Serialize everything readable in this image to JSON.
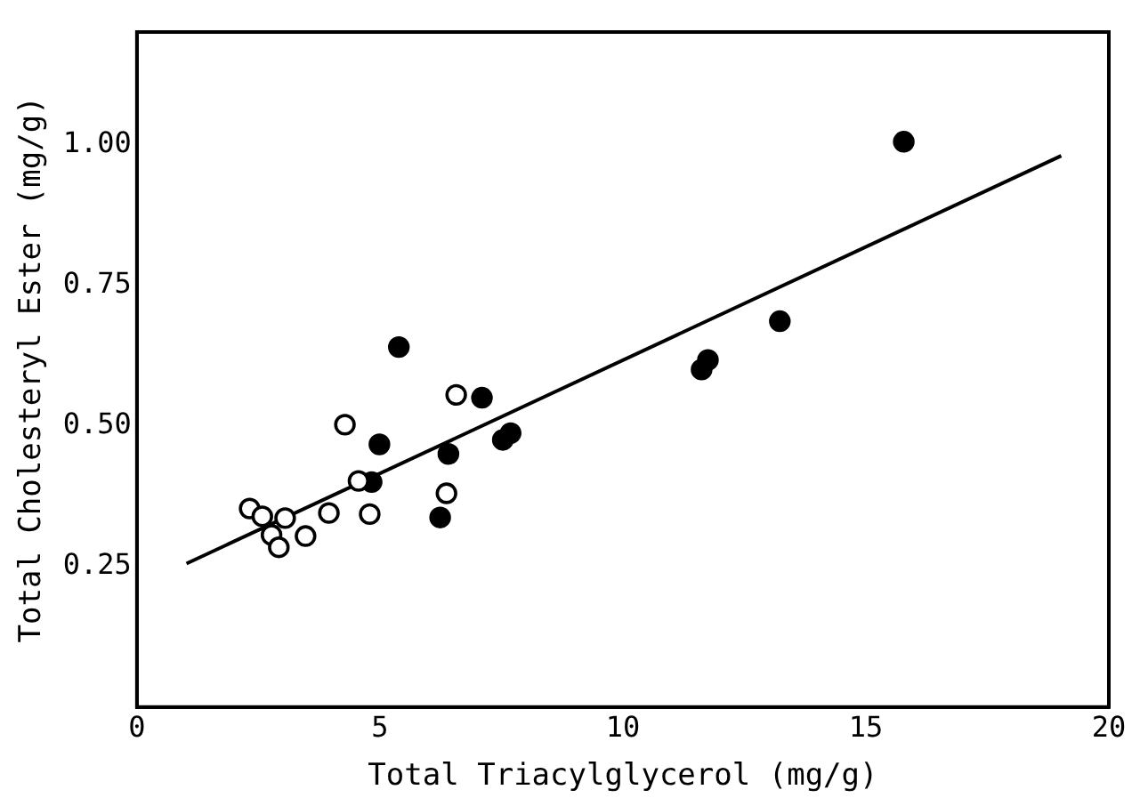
{
  "chart_data": {
    "type": "scatter",
    "xlabel": "Total Triacylglycerol (mg/g)",
    "ylabel": "Total Cholesteryl Ester (mg/g)",
    "xlim": [
      0,
      20
    ],
    "ylim": [
      0,
      1.2
    ],
    "xticks": [
      0,
      5,
      10,
      15,
      20
    ],
    "yticks": [
      {
        "value": 0.25,
        "label": "0.25"
      },
      {
        "value": 0.5,
        "label": "0.50"
      },
      {
        "value": 0.75,
        "label": "0.75"
      },
      {
        "value": 1,
        "label": "1.00"
      }
    ],
    "grid": false,
    "legend": false,
    "marker": "circle",
    "series": [
      {
        "color": "#ffffff",
        "x": [
          2.32,
          2.58,
          3.05,
          2.77,
          2.92,
          3.47,
          3.95,
          4.79,
          4.28,
          6.37,
          6.57,
          4.56
        ],
        "values": [
          0.353,
          0.339,
          0.336,
          0.306,
          0.284,
          0.304,
          0.345,
          0.343,
          0.502,
          0.38,
          0.555,
          0.402
        ]
      },
      {
        "color": "#000000",
        "x": [
          15.78,
          13.23,
          11.62,
          11.75,
          7.1,
          7.69,
          7.53,
          5.39,
          4.99,
          4.83,
          6.41,
          6.24
        ],
        "values": [
          1.005,
          0.686,
          0.6,
          0.617,
          0.55,
          0.487,
          0.475,
          0.64,
          0.467,
          0.4,
          0.45,
          0.337
        ]
      },
      {
        "type": "line",
        "color": "#000000",
        "marker": "none",
        "x": [
          1.02,
          19.02
        ],
        "values": [
          0.255,
          0.98
        ]
      }
    ]
  }
}
